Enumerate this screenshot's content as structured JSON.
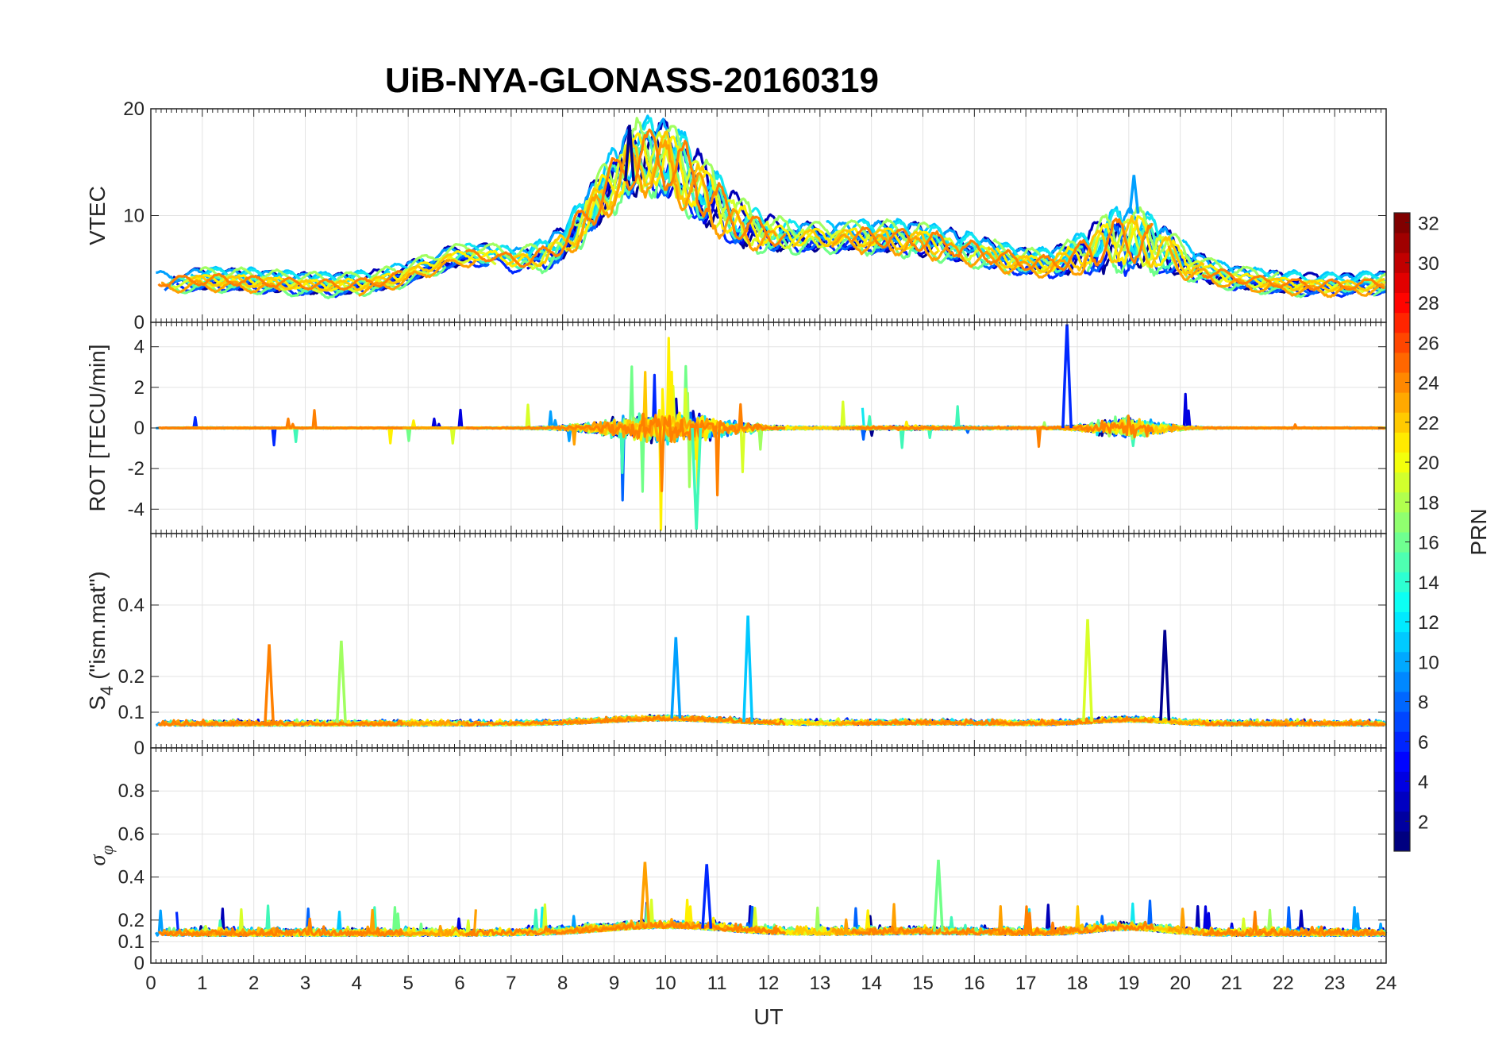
{
  "chart_data": {
    "type": "line",
    "title": "UiB-NYA-GLONASS-20160319",
    "xlabel": "UT",
    "xlim": [
      0,
      24
    ],
    "xticks": [
      "0",
      "1",
      "2",
      "3",
      "4",
      "5",
      "6",
      "7",
      "8",
      "9",
      "10",
      "11",
      "12",
      "13",
      "14",
      "15",
      "16",
      "17",
      "18",
      "19",
      "20",
      "21",
      "22",
      "23",
      "24"
    ],
    "panels": [
      {
        "id": "vtec",
        "ylabel": "VTEC",
        "ylim": [
          0,
          20
        ],
        "yticks": [
          {
            "v": 0,
            "t": "0"
          },
          {
            "v": 10,
            "t": "10"
          },
          {
            "v": 20,
            "t": "20"
          }
        ],
        "kind": "vtec"
      },
      {
        "id": "rot",
        "ylabel": "ROT [TECU/min]",
        "ylim": [
          -5.2,
          5.2
        ],
        "yticks": [
          {
            "v": -4,
            "t": "-4"
          },
          {
            "v": -2,
            "t": "-2"
          },
          {
            "v": 0,
            "t": "0"
          },
          {
            "v": 2,
            "t": "2"
          },
          {
            "v": 4,
            "t": "4"
          }
        ],
        "kind": "rot"
      },
      {
        "id": "s4",
        "ylabel": "S",
        "ylabel_sub": "4",
        "ylabel_rest": " (\"ism.mat\")",
        "ylim": [
          0,
          0.6
        ],
        "yticks": [
          {
            "v": 0,
            "t": "0"
          },
          {
            "v": 0.1,
            "t": "0.1"
          },
          {
            "v": 0.2,
            "t": "0.2"
          },
          {
            "v": 0.4,
            "t": "0.4"
          }
        ],
        "kind": "s4"
      },
      {
        "id": "sigphi",
        "ylabel": "σ",
        "ylabel_sub": "φ",
        "ylim": [
          0,
          1
        ],
        "yticks": [
          {
            "v": 0,
            "t": "0"
          },
          {
            "v": 0.1,
            "t": "0.1"
          },
          {
            "v": 0.2,
            "t": "0.2"
          },
          {
            "v": 0.4,
            "t": "0.4"
          },
          {
            "v": 0.6,
            "t": "0.6"
          },
          {
            "v": 0.8,
            "t": "0.8"
          }
        ],
        "kind": "sigphi"
      }
    ],
    "series": [
      {
        "prn": 1,
        "color": "#000090"
      },
      {
        "prn": 2,
        "color": "#0000B8"
      },
      {
        "prn": 3,
        "color": "#0000E0"
      },
      {
        "prn": 4,
        "color": "#0028FF"
      },
      {
        "prn": 5,
        "color": "#0064FF"
      },
      {
        "prn": 6,
        "color": "#00A0FF"
      },
      {
        "prn": 8,
        "color": "#00C8FF"
      },
      {
        "prn": 9,
        "color": "#10E8F0"
      },
      {
        "prn": 11,
        "color": "#40F8B8"
      },
      {
        "prn": 13,
        "color": "#70FF88"
      },
      {
        "prn": 15,
        "color": "#A0FF60"
      },
      {
        "prn": 17,
        "color": "#D8FF28"
      },
      {
        "prn": 19,
        "color": "#FFF000"
      },
      {
        "prn": 21,
        "color": "#FFC800"
      },
      {
        "prn": 22,
        "color": "#FFA000"
      },
      {
        "prn": 23,
        "color": "#FF8000"
      }
    ],
    "annotations": [
      {
        "panel": "vtec",
        "t": 9.3,
        "v": 18.5
      },
      {
        "panel": "vtec",
        "t": 19.1,
        "v": 13.8
      },
      {
        "panel": "rot",
        "t": 17.8,
        "v": 5.1
      },
      {
        "panel": "rot",
        "t": 10.6,
        "v": -5.0
      },
      {
        "panel": "s4",
        "t": 11.6,
        "v": 0.37
      },
      {
        "panel": "s4",
        "t": 18.2,
        "v": 0.36
      },
      {
        "panel": "s4",
        "t": 19.7,
        "v": 0.33
      },
      {
        "panel": "s4",
        "t": 10.2,
        "v": 0.31
      },
      {
        "panel": "s4",
        "t": 3.7,
        "v": 0.3
      },
      {
        "panel": "s4",
        "t": 2.3,
        "v": 0.29
      },
      {
        "panel": "sigphi",
        "t": 15.3,
        "v": 0.48
      },
      {
        "panel": "sigphi",
        "t": 9.6,
        "v": 0.47
      },
      {
        "panel": "sigphi",
        "t": 10.8,
        "v": 0.46
      }
    ],
    "colorbar": {
      "label": "PRN",
      "range": [
        1,
        32
      ],
      "ticks": [
        "2",
        "4",
        "6",
        "8",
        "10",
        "12",
        "14",
        "16",
        "18",
        "20",
        "22",
        "24",
        "26",
        "28",
        "30",
        "32"
      ],
      "colormap": "jet"
    },
    "grid": true
  }
}
